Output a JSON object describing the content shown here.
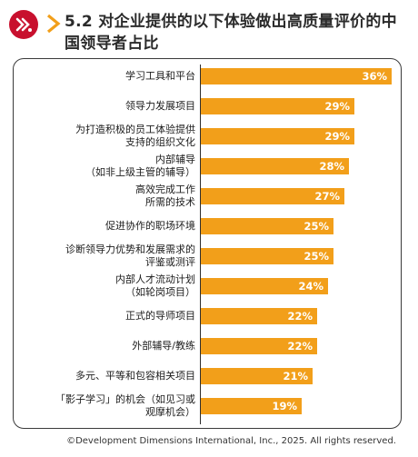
{
  "header": {
    "title": "5.2 对企业提供的以下体验做出高质量评价的中国领导者占比",
    "logo_color": "#c8102e",
    "chevron_color": "#f29f1a"
  },
  "chart_data": {
    "type": "bar",
    "orientation": "horizontal",
    "bar_color": "#f29f1a",
    "value_suffix": "%",
    "categories": [
      "学习工具和平台",
      "领导力发展项目",
      "为打造积极的员工体验提供\n支持的组织文化",
      "内部辅导\n（如非上级主管的辅导）",
      "高效完成工作\n所需的技术",
      "促进协作的职场环境",
      "诊断领导力优势和发展需求的\n评鉴或测评",
      "内部人才流动计划\n（如轮岗项目）",
      "正式的导师项目",
      "外部辅导/教练",
      "多元、平等和包容相关项目",
      "「影子学习」的机会（如见习或\n观摩机会）"
    ],
    "values": [
      36,
      29,
      29,
      28,
      27,
      25,
      25,
      24,
      22,
      22,
      21,
      19
    ],
    "value_labels": [
      "36%",
      "29%",
      "29%",
      "28%",
      "27%",
      "25%",
      "25%",
      "24%",
      "22%",
      "22%",
      "21%",
      "19%"
    ]
  },
  "footer": {
    "copyright": "©Development Dimensions International, Inc., 2025. All rights reserved."
  }
}
